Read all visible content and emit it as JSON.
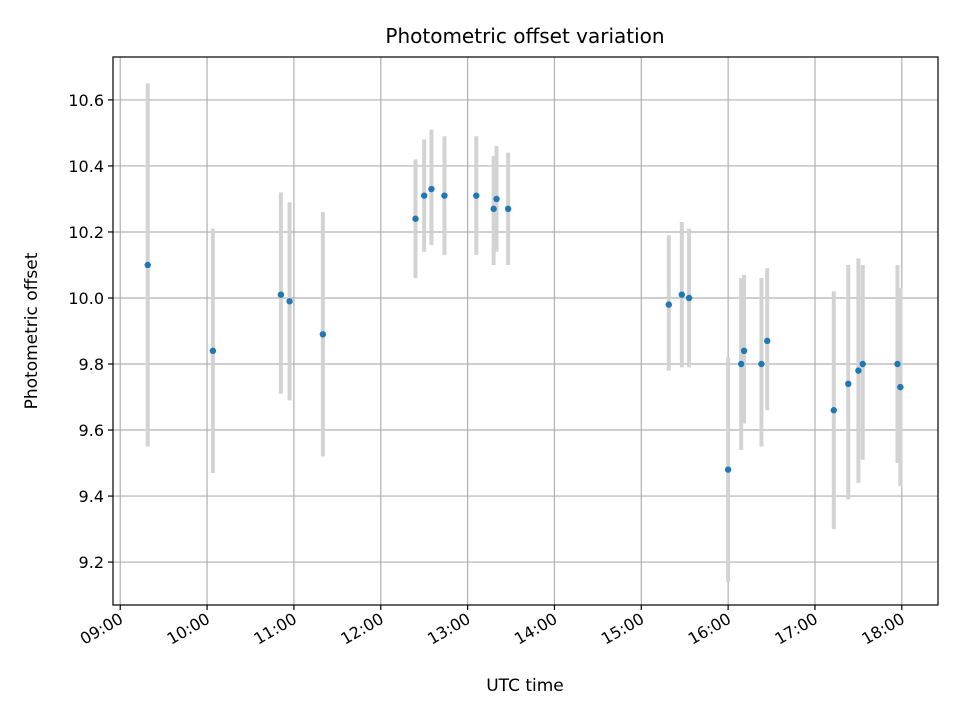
{
  "chart_data": {
    "type": "scatter",
    "title": "Photometric offset variation",
    "xlabel": "UTC time",
    "ylabel": "Photometric offset",
    "x_ticks": [
      "09:00",
      "10:00",
      "11:00",
      "12:00",
      "13:00",
      "14:00",
      "15:00",
      "16:00",
      "17:00",
      "18:00"
    ],
    "y_ticks": [
      "9.2",
      "9.4",
      "9.6",
      "9.8",
      "10.0",
      "10.2",
      "10.4",
      "10.6"
    ],
    "xlim": [
      "08:55",
      "18:25"
    ],
    "ylim": [
      9.07,
      10.73
    ],
    "grid": true,
    "legend": "none",
    "marker_color": "#1f77b4",
    "errorbar_color": "#d3d3d3",
    "series": [
      {
        "points": [
          {
            "x": "09:19",
            "y": 10.1,
            "low": 9.55,
            "high": 10.65
          },
          {
            "x": "10:04",
            "y": 9.84,
            "low": 9.47,
            "high": 10.21
          },
          {
            "x": "10:51",
            "y": 10.01,
            "low": 9.71,
            "high": 10.32
          },
          {
            "x": "10:57",
            "y": 9.99,
            "low": 9.69,
            "high": 10.29
          },
          {
            "x": "11:20",
            "y": 9.89,
            "low": 9.52,
            "high": 10.26
          },
          {
            "x": "12:24",
            "y": 10.24,
            "low": 10.06,
            "high": 10.42
          },
          {
            "x": "12:30",
            "y": 10.31,
            "low": 10.14,
            "high": 10.48
          },
          {
            "x": "12:35",
            "y": 10.33,
            "low": 10.16,
            "high": 10.51
          },
          {
            "x": "12:44",
            "y": 10.31,
            "low": 10.13,
            "high": 10.49
          },
          {
            "x": "13:06",
            "y": 10.31,
            "low": 10.13,
            "high": 10.49
          },
          {
            "x": "13:18",
            "y": 10.27,
            "low": 10.1,
            "high": 10.43
          },
          {
            "x": "13:20",
            "y": 10.3,
            "low": 10.14,
            "high": 10.46
          },
          {
            "x": "13:28",
            "y": 10.27,
            "low": 10.1,
            "high": 10.44
          },
          {
            "x": "15:19",
            "y": 9.98,
            "low": 9.78,
            "high": 10.19
          },
          {
            "x": "15:28",
            "y": 10.01,
            "low": 9.79,
            "high": 10.23
          },
          {
            "x": "15:33",
            "y": 10.0,
            "low": 9.79,
            "high": 10.21
          },
          {
            "x": "16:00",
            "y": 9.48,
            "low": 9.14,
            "high": 9.82
          },
          {
            "x": "16:09",
            "y": 9.8,
            "low": 9.54,
            "high": 10.06
          },
          {
            "x": "16:11",
            "y": 9.84,
            "low": 9.62,
            "high": 10.07
          },
          {
            "x": "16:23",
            "y": 9.8,
            "low": 9.55,
            "high": 10.06
          },
          {
            "x": "16:27",
            "y": 9.87,
            "low": 9.66,
            "high": 10.09
          },
          {
            "x": "17:13",
            "y": 9.66,
            "low": 9.3,
            "high": 10.02
          },
          {
            "x": "17:23",
            "y": 9.74,
            "low": 9.39,
            "high": 10.1
          },
          {
            "x": "17:30",
            "y": 9.78,
            "low": 9.44,
            "high": 10.12
          },
          {
            "x": "17:33",
            "y": 9.8,
            "low": 9.51,
            "high": 10.1
          },
          {
            "x": "17:57",
            "y": 9.8,
            "low": 9.5,
            "high": 10.1
          },
          {
            "x": "17:59",
            "y": 9.73,
            "low": 9.43,
            "high": 10.03
          }
        ]
      }
    ]
  }
}
